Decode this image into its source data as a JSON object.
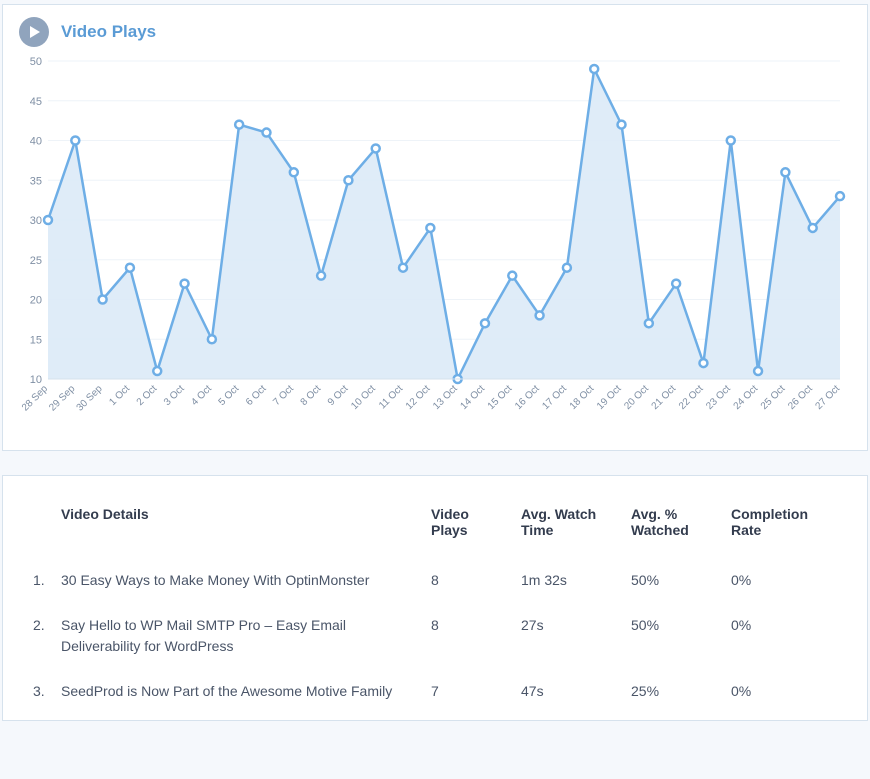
{
  "chart": {
    "title": "Video Plays",
    "icon": "play-icon",
    "type": "area-line",
    "line_color": "#6eaee6",
    "area_color": "#dceaf7",
    "marker_fill": "#ffffff",
    "marker_stroke": "#6eaee6",
    "marker_radius": 4,
    "line_width": 2.5,
    "grid_color": "#eef3f8",
    "axis_color": "#d6e2ed",
    "tick_color": "#7f8fa4",
    "background_color": "#ffffff",
    "ytick_fontsize": 11,
    "xtick_fontsize": 10,
    "ylim": [
      10,
      50
    ],
    "yticks": [
      10,
      15,
      20,
      25,
      30,
      35,
      40,
      45,
      50
    ],
    "categories": [
      "28 Sep",
      "29 Sep",
      "30 Sep",
      "1 Oct",
      "2 Oct",
      "3 Oct",
      "4 Oct",
      "5 Oct",
      "6 Oct",
      "7 Oct",
      "8 Oct",
      "9 Oct",
      "10 Oct",
      "11 Oct",
      "12 Oct",
      "13 Oct",
      "14 Oct",
      "15 Oct",
      "16 Oct",
      "17 Oct",
      "18 Oct",
      "19 Oct",
      "20 Oct",
      "21 Oct",
      "22 Oct",
      "23 Oct",
      "24 Oct",
      "25 Oct",
      "26 Oct",
      "27 Oct"
    ],
    "values": [
      30,
      40,
      20,
      24,
      11,
      22,
      15,
      42,
      41,
      36,
      23,
      35,
      39,
      24,
      29,
      10,
      17,
      23,
      18,
      24,
      49,
      42,
      17,
      22,
      12,
      40,
      11,
      36,
      29,
      33
    ]
  },
  "table": {
    "columns": [
      {
        "key": "details",
        "label": "Video Details"
      },
      {
        "key": "plays",
        "label": "Video Plays"
      },
      {
        "key": "avg_watch",
        "label": "Avg. Watch Time"
      },
      {
        "key": "avg_pct",
        "label": "Avg. % Watched"
      },
      {
        "key": "completion",
        "label": "Completion Rate"
      }
    ],
    "rows": [
      {
        "n": "1.",
        "title": "30 Easy Ways to Make Money With OptinMonster",
        "plays": "8",
        "avg_watch": "1m 32s",
        "avg_pct": "50%",
        "completion": "0%"
      },
      {
        "n": "2.",
        "title": "Say Hello to WP Mail SMTP Pro – Easy Email Deliverability for WordPress",
        "plays": "8",
        "avg_watch": "27s",
        "avg_pct": "50%",
        "completion": "0%"
      },
      {
        "n": "3.",
        "title": "SeedProd is Now Part of the Awesome Motive Family",
        "plays": "7",
        "avg_watch": "47s",
        "avg_pct": "25%",
        "completion": "0%"
      }
    ]
  }
}
